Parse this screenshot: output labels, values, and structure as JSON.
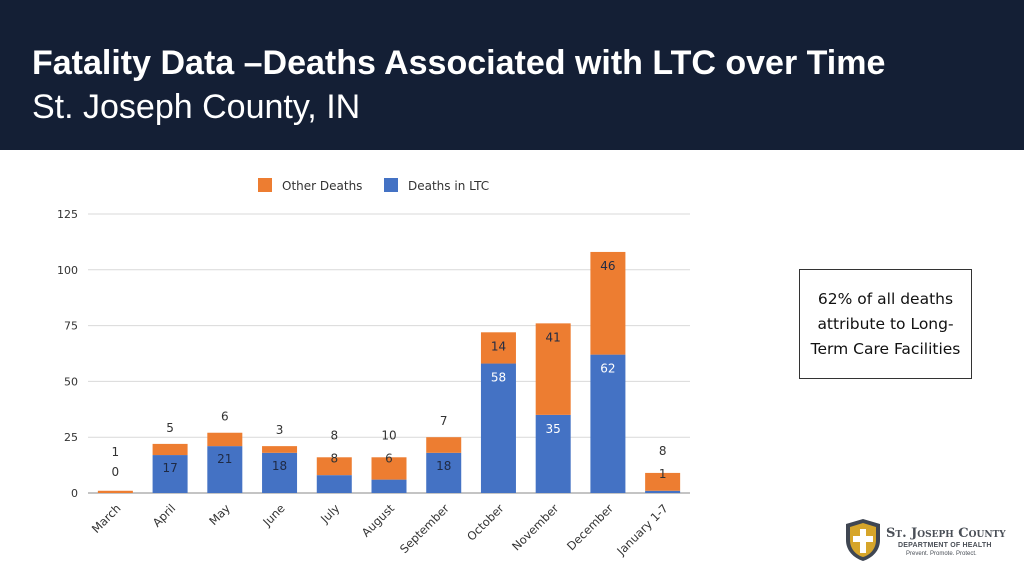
{
  "header": {
    "title": "Fatality Data –Deaths Associated with LTC over Time",
    "subtitle": "St. Joseph County, IN"
  },
  "callout": {
    "text": "62% of all deaths attribute to Long-Term Care Facilities"
  },
  "logo": {
    "name": "St. Joseph County",
    "department": "DEPARTMENT OF HEALTH",
    "tagline": "Prevent. Promote. Protect."
  },
  "chart_data": {
    "type": "bar",
    "stacked": true,
    "categories": [
      "March",
      "April",
      "May",
      "June",
      "July",
      "August",
      "September",
      "October",
      "November",
      "December",
      "January 1-7"
    ],
    "series": [
      {
        "name": "Deaths in LTC",
        "color": "#4472c4",
        "values": [
          0,
          17,
          21,
          18,
          8,
          6,
          18,
          58,
          35,
          62,
          1
        ]
      },
      {
        "name": "Other Deaths",
        "color": "#ed7d31",
        "values": [
          1,
          5,
          6,
          3,
          8,
          10,
          7,
          14,
          41,
          46,
          8
        ]
      }
    ],
    "legend_order": [
      "Other Deaths",
      "Deaths in LTC"
    ],
    "legend_position": "top",
    "yticks": [
      0,
      25,
      50,
      75,
      100,
      125
    ],
    "ylim": [
      0,
      125
    ],
    "grid": true,
    "xlabel": "",
    "ylabel": ""
  }
}
